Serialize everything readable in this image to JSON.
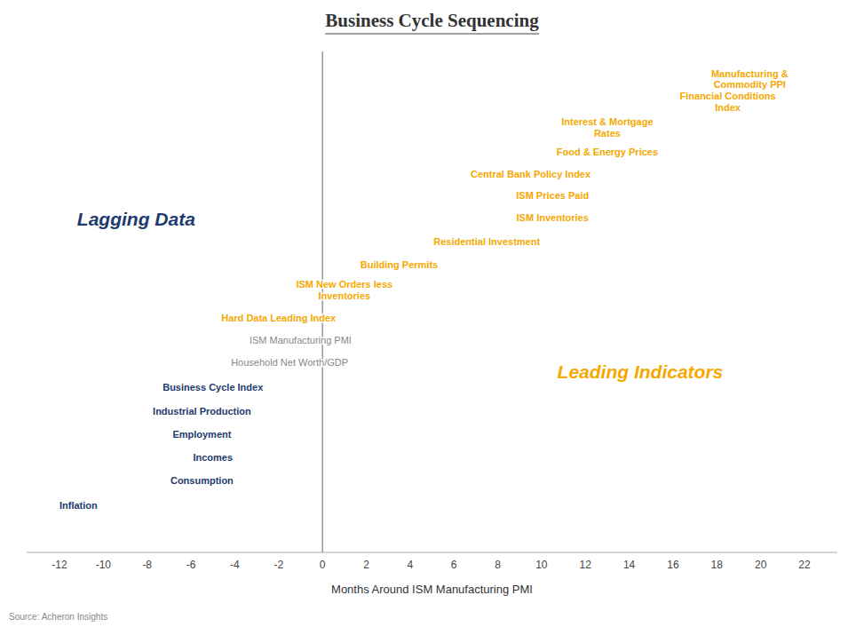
{
  "chart_data": {
    "type": "scatter",
    "title": "Business Cycle Sequencing",
    "xlabel": "Months Around ISM Manufacturing PMI",
    "source": "Source: Acheron Insights",
    "xlim": [
      -13.5,
      23.5
    ],
    "ylim": [
      0.0,
      1.0
    ],
    "xticks": [
      -12,
      -10,
      -8,
      -6,
      -4,
      -2,
      0,
      2,
      4,
      6,
      8,
      10,
      12,
      14,
      16,
      18,
      20,
      22
    ],
    "tick_labels": "x",
    "grid": false,
    "vline": 0,
    "annotations": [
      {
        "text": "Lagging Data",
        "x": -8.5,
        "y": 0.665,
        "color": "#1e3a6e"
      },
      {
        "text": "Leading Indicators",
        "x": 14.5,
        "y": 0.36,
        "color": "#f5a800"
      }
    ],
    "points": [
      {
        "label": "Manufacturing &\nCommodity PPI",
        "x": 19.5,
        "y": 0.945,
        "color": "#f5a800",
        "align": "center",
        "bold": true
      },
      {
        "label": "Financial Conditions\nIndex",
        "x": 18.5,
        "y": 0.9,
        "color": "#f5a800",
        "align": "center",
        "bold": true
      },
      {
        "label": "Interest & Mortgage\nRates",
        "x": 13.0,
        "y": 0.848,
        "color": "#f5a800",
        "align": "center",
        "bold": true
      },
      {
        "label": "Food & Energy Prices",
        "x": 13.0,
        "y": 0.8,
        "color": "#f5a800",
        "align": "center",
        "bold": true
      },
      {
        "label": "Central Bank Policy Index",
        "x": 9.5,
        "y": 0.756,
        "color": "#f5a800",
        "align": "center",
        "bold": true
      },
      {
        "label": "ISM Prices Paid",
        "x": 10.5,
        "y": 0.712,
        "color": "#f5a800",
        "align": "center",
        "bold": true
      },
      {
        "label": "ISM Inventories",
        "x": 10.5,
        "y": 0.668,
        "color": "#f5a800",
        "align": "center",
        "bold": true
      },
      {
        "label": "Residential Investment",
        "x": 7.5,
        "y": 0.62,
        "color": "#f5a800",
        "align": "center",
        "bold": true
      },
      {
        "label": "Building Permits",
        "x": 3.5,
        "y": 0.574,
        "color": "#f5a800",
        "align": "center",
        "bold": true
      },
      {
        "label": "ISM New Orders less\nInventories",
        "x": 1.0,
        "y": 0.524,
        "color": "#f5a800",
        "align": "center",
        "bold": true
      },
      {
        "label": "Hard Data Leading Index",
        "x": -2.0,
        "y": 0.468,
        "color": "#f5a800",
        "align": "center",
        "bold": true
      },
      {
        "label": "ISM Manufacturing PMI",
        "x": -1.0,
        "y": 0.424,
        "color": "#888888",
        "align": "center",
        "bold": false
      },
      {
        "label": "Household Net Worth/GDP",
        "x": -1.5,
        "y": 0.38,
        "color": "#888888",
        "align": "center",
        "bold": false
      },
      {
        "label": "Business Cycle Index",
        "x": -5.0,
        "y": 0.33,
        "color": "#1e3a6e",
        "align": "center",
        "bold": true
      },
      {
        "label": "Industrial Production",
        "x": -5.5,
        "y": 0.282,
        "color": "#1e3a6e",
        "align": "center",
        "bold": true
      },
      {
        "label": "Employment",
        "x": -5.5,
        "y": 0.236,
        "color": "#1e3a6e",
        "align": "center",
        "bold": true
      },
      {
        "label": "Incomes",
        "x": -5.0,
        "y": 0.19,
        "color": "#1e3a6e",
        "align": "center",
        "bold": true
      },
      {
        "label": "Consumption",
        "x": -5.5,
        "y": 0.144,
        "color": "#1e3a6e",
        "align": "center",
        "bold": true
      },
      {
        "label": "Inflation",
        "x": -12.0,
        "y": 0.094,
        "color": "#1e3a6e",
        "align": "left",
        "bold": true
      }
    ]
  }
}
